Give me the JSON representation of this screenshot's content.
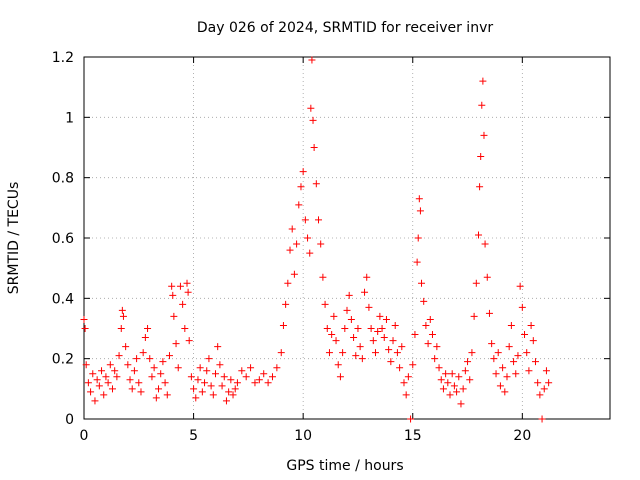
{
  "chart_data": {
    "type": "scatter",
    "title": "Day 026 of 2024, SRMTID for receiver invr",
    "xlabel": "GPS time / hours",
    "ylabel": "SRMTID / TECUs",
    "xlim": [
      0,
      24
    ],
    "ylim": [
      0,
      1.2
    ],
    "x_ticks": [
      0,
      5,
      10,
      15,
      20
    ],
    "x_tick_labels": [
      "0",
      "5",
      "10",
      "15",
      "20"
    ],
    "y_ticks": [
      0,
      0.2,
      0.4,
      0.6,
      0.8,
      1,
      1.2
    ],
    "y_tick_labels": [
      "0",
      "0.2",
      "0.4",
      "0.6",
      "0.8",
      "1",
      "1.2"
    ],
    "grid": true,
    "marker": "+",
    "color": "#ff0000",
    "series": [
      {
        "name": "SRMTID",
        "points": [
          [
            0.0,
            0.33
          ],
          [
            0.05,
            0.3
          ],
          [
            0.1,
            0.18
          ],
          [
            0.2,
            0.12
          ],
          [
            0.3,
            0.09
          ],
          [
            0.4,
            0.15
          ],
          [
            0.5,
            0.06
          ],
          [
            0.6,
            0.13
          ],
          [
            0.7,
            0.11
          ],
          [
            0.8,
            0.16
          ],
          [
            0.9,
            0.08
          ],
          [
            1.0,
            0.14
          ],
          [
            1.1,
            0.12
          ],
          [
            1.2,
            0.18
          ],
          [
            1.3,
            0.1
          ],
          [
            1.4,
            0.16
          ],
          [
            1.5,
            0.14
          ],
          [
            1.6,
            0.21
          ],
          [
            1.7,
            0.3
          ],
          [
            1.75,
            0.36
          ],
          [
            1.8,
            0.34
          ],
          [
            1.9,
            0.24
          ],
          [
            2.0,
            0.18
          ],
          [
            2.1,
            0.13
          ],
          [
            2.2,
            0.1
          ],
          [
            2.3,
            0.16
          ],
          [
            2.4,
            0.2
          ],
          [
            2.5,
            0.12
          ],
          [
            2.6,
            0.09
          ],
          [
            2.7,
            0.22
          ],
          [
            2.8,
            0.27
          ],
          [
            2.9,
            0.3
          ],
          [
            3.0,
            0.2
          ],
          [
            3.1,
            0.14
          ],
          [
            3.2,
            0.17
          ],
          [
            3.3,
            0.07
          ],
          [
            3.4,
            0.1
          ],
          [
            3.5,
            0.15
          ],
          [
            3.6,
            0.19
          ],
          [
            3.7,
            0.12
          ],
          [
            3.8,
            0.08
          ],
          [
            3.9,
            0.21
          ],
          [
            4.0,
            0.44
          ],
          [
            4.05,
            0.41
          ],
          [
            4.1,
            0.34
          ],
          [
            4.2,
            0.25
          ],
          [
            4.3,
            0.17
          ],
          [
            4.4,
            0.44
          ],
          [
            4.5,
            0.38
          ],
          [
            4.6,
            0.3
          ],
          [
            4.7,
            0.45
          ],
          [
            4.75,
            0.42
          ],
          [
            4.8,
            0.26
          ],
          [
            4.9,
            0.14
          ],
          [
            5.0,
            0.1
          ],
          [
            5.1,
            0.07
          ],
          [
            5.2,
            0.13
          ],
          [
            5.3,
            0.17
          ],
          [
            5.4,
            0.09
          ],
          [
            5.5,
            0.12
          ],
          [
            5.6,
            0.16
          ],
          [
            5.7,
            0.2
          ],
          [
            5.8,
            0.11
          ],
          [
            5.9,
            0.08
          ],
          [
            6.0,
            0.15
          ],
          [
            6.1,
            0.24
          ],
          [
            6.2,
            0.18
          ],
          [
            6.3,
            0.11
          ],
          [
            6.4,
            0.14
          ],
          [
            6.5,
            0.06
          ],
          [
            6.6,
            0.09
          ],
          [
            6.7,
            0.13
          ],
          [
            6.8,
            0.08
          ],
          [
            6.9,
            0.1
          ],
          [
            7.0,
            0.12
          ],
          [
            7.2,
            0.16
          ],
          [
            7.4,
            0.14
          ],
          [
            7.6,
            0.17
          ],
          [
            7.8,
            0.12
          ],
          [
            8.0,
            0.13
          ],
          [
            8.2,
            0.15
          ],
          [
            8.4,
            0.12
          ],
          [
            8.6,
            0.14
          ],
          [
            8.8,
            0.17
          ],
          [
            9.0,
            0.22
          ],
          [
            9.1,
            0.31
          ],
          [
            9.2,
            0.38
          ],
          [
            9.3,
            0.45
          ],
          [
            9.4,
            0.56
          ],
          [
            9.5,
            0.63
          ],
          [
            9.6,
            0.48
          ],
          [
            9.7,
            0.58
          ],
          [
            9.8,
            0.71
          ],
          [
            9.9,
            0.77
          ],
          [
            10.0,
            0.82
          ],
          [
            10.1,
            0.66
          ],
          [
            10.2,
            0.6
          ],
          [
            10.3,
            0.55
          ],
          [
            10.35,
            1.03
          ],
          [
            10.4,
            1.19
          ],
          [
            10.45,
            0.99
          ],
          [
            10.5,
            0.9
          ],
          [
            10.6,
            0.78
          ],
          [
            10.7,
            0.66
          ],
          [
            10.8,
            0.58
          ],
          [
            10.9,
            0.47
          ],
          [
            11.0,
            0.38
          ],
          [
            11.1,
            0.3
          ],
          [
            11.2,
            0.22
          ],
          [
            11.3,
            0.28
          ],
          [
            11.4,
            0.34
          ],
          [
            11.5,
            0.26
          ],
          [
            11.6,
            0.18
          ],
          [
            11.7,
            0.14
          ],
          [
            11.8,
            0.22
          ],
          [
            11.9,
            0.3
          ],
          [
            12.0,
            0.36
          ],
          [
            12.1,
            0.41
          ],
          [
            12.2,
            0.33
          ],
          [
            12.3,
            0.27
          ],
          [
            12.4,
            0.21
          ],
          [
            12.5,
            0.3
          ],
          [
            12.6,
            0.24
          ],
          [
            12.7,
            0.2
          ],
          [
            12.8,
            0.42
          ],
          [
            12.9,
            0.47
          ],
          [
            13.0,
            0.37
          ],
          [
            13.1,
            0.3
          ],
          [
            13.2,
            0.26
          ],
          [
            13.3,
            0.22
          ],
          [
            13.4,
            0.29
          ],
          [
            13.5,
            0.34
          ],
          [
            13.6,
            0.3
          ],
          [
            13.7,
            0.27
          ],
          [
            13.8,
            0.33
          ],
          [
            13.9,
            0.23
          ],
          [
            14.0,
            0.19
          ],
          [
            14.1,
            0.26
          ],
          [
            14.2,
            0.31
          ],
          [
            14.3,
            0.22
          ],
          [
            14.4,
            0.17
          ],
          [
            14.5,
            0.24
          ],
          [
            14.6,
            0.12
          ],
          [
            14.7,
            0.08
          ],
          [
            14.8,
            0.14
          ],
          [
            14.9,
            0.0
          ],
          [
            15.0,
            0.18
          ],
          [
            15.1,
            0.28
          ],
          [
            15.2,
            0.52
          ],
          [
            15.25,
            0.6
          ],
          [
            15.3,
            0.73
          ],
          [
            15.35,
            0.69
          ],
          [
            15.4,
            0.45
          ],
          [
            15.5,
            0.39
          ],
          [
            15.6,
            0.31
          ],
          [
            15.7,
            0.25
          ],
          [
            15.8,
            0.33
          ],
          [
            15.9,
            0.28
          ],
          [
            16.0,
            0.2
          ],
          [
            16.1,
            0.24
          ],
          [
            16.2,
            0.17
          ],
          [
            16.3,
            0.13
          ],
          [
            16.4,
            0.1
          ],
          [
            16.5,
            0.15
          ],
          [
            16.6,
            0.12
          ],
          [
            16.7,
            0.08
          ],
          [
            16.8,
            0.15
          ],
          [
            16.9,
            0.11
          ],
          [
            17.0,
            0.09
          ],
          [
            17.1,
            0.14
          ],
          [
            17.2,
            0.05
          ],
          [
            17.3,
            0.1
          ],
          [
            17.4,
            0.16
          ],
          [
            17.5,
            0.19
          ],
          [
            17.6,
            0.13
          ],
          [
            17.7,
            0.22
          ],
          [
            17.8,
            0.34
          ],
          [
            17.9,
            0.45
          ],
          [
            18.0,
            0.61
          ],
          [
            18.05,
            0.77
          ],
          [
            18.1,
            0.87
          ],
          [
            18.15,
            1.04
          ],
          [
            18.2,
            1.12
          ],
          [
            18.25,
            0.94
          ],
          [
            18.3,
            0.58
          ],
          [
            18.4,
            0.47
          ],
          [
            18.5,
            0.35
          ],
          [
            18.6,
            0.25
          ],
          [
            18.7,
            0.2
          ],
          [
            18.8,
            0.15
          ],
          [
            18.9,
            0.22
          ],
          [
            19.0,
            0.11
          ],
          [
            19.1,
            0.17
          ],
          [
            19.2,
            0.09
          ],
          [
            19.3,
            0.14
          ],
          [
            19.4,
            0.24
          ],
          [
            19.5,
            0.31
          ],
          [
            19.6,
            0.19
          ],
          [
            19.7,
            0.15
          ],
          [
            19.8,
            0.21
          ],
          [
            19.9,
            0.44
          ],
          [
            20.0,
            0.37
          ],
          [
            20.1,
            0.28
          ],
          [
            20.2,
            0.22
          ],
          [
            20.3,
            0.16
          ],
          [
            20.4,
            0.31
          ],
          [
            20.5,
            0.26
          ],
          [
            20.6,
            0.19
          ],
          [
            20.7,
            0.12
          ],
          [
            20.8,
            0.08
          ],
          [
            20.9,
            0.0
          ],
          [
            21.0,
            0.1
          ],
          [
            21.1,
            0.16
          ],
          [
            21.2,
            0.12
          ]
        ]
      }
    ]
  }
}
